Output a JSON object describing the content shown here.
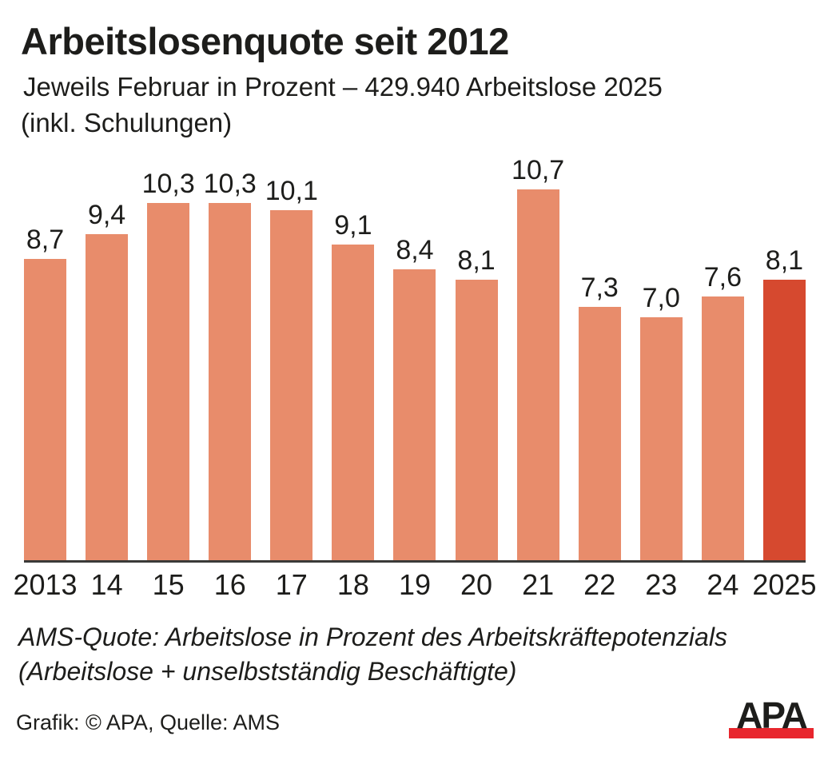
{
  "header": {
    "title": "Arbeitslosenquote seit 2012",
    "subtitle_line1": "Jeweils Februar in Prozent – 429.940 Arbeitslose 2025",
    "subtitle_line2": "(inkl. Schulungen)"
  },
  "chart_data": {
    "type": "bar",
    "title": "Arbeitslosenquote seit 2012",
    "subtitle": "Jeweils Februar in Prozent – 429.940 Arbeitslose 2025 (inkl. Schulungen)",
    "categories": [
      "2013",
      "14",
      "15",
      "16",
      "17",
      "18",
      "19",
      "20",
      "21",
      "22",
      "23",
      "24",
      "2025"
    ],
    "values": [
      8.7,
      9.4,
      10.3,
      10.3,
      10.1,
      9.1,
      8.4,
      8.1,
      10.7,
      7.3,
      7.0,
      7.6,
      8.1
    ],
    "value_labels": [
      "8,7",
      "9,4",
      "10,3",
      "10,3",
      "10,1",
      "9,1",
      "8,4",
      "8,1",
      "10,7",
      "7,3",
      "7,0",
      "7,6",
      "8,1"
    ],
    "highlight_index": 12,
    "xlabel": "",
    "ylabel": "",
    "ylim": [
      0,
      10.7
    ],
    "grid": false,
    "legend": false,
    "colors": {
      "bar": "#E88C6B",
      "highlight_bar": "#D6492F",
      "baseline": "#3a3a38"
    }
  },
  "footnote": {
    "line1": "AMS-Quote: Arbeitslose in Prozent des Arbeitskräftepotenzials",
    "line2": "(Arbeitslose + unselbstständig Beschäftigte)"
  },
  "footer": {
    "source": "Grafik: © APA, Quelle: AMS",
    "logo_text": "APA",
    "logo_bar_color": "#E8262D"
  }
}
